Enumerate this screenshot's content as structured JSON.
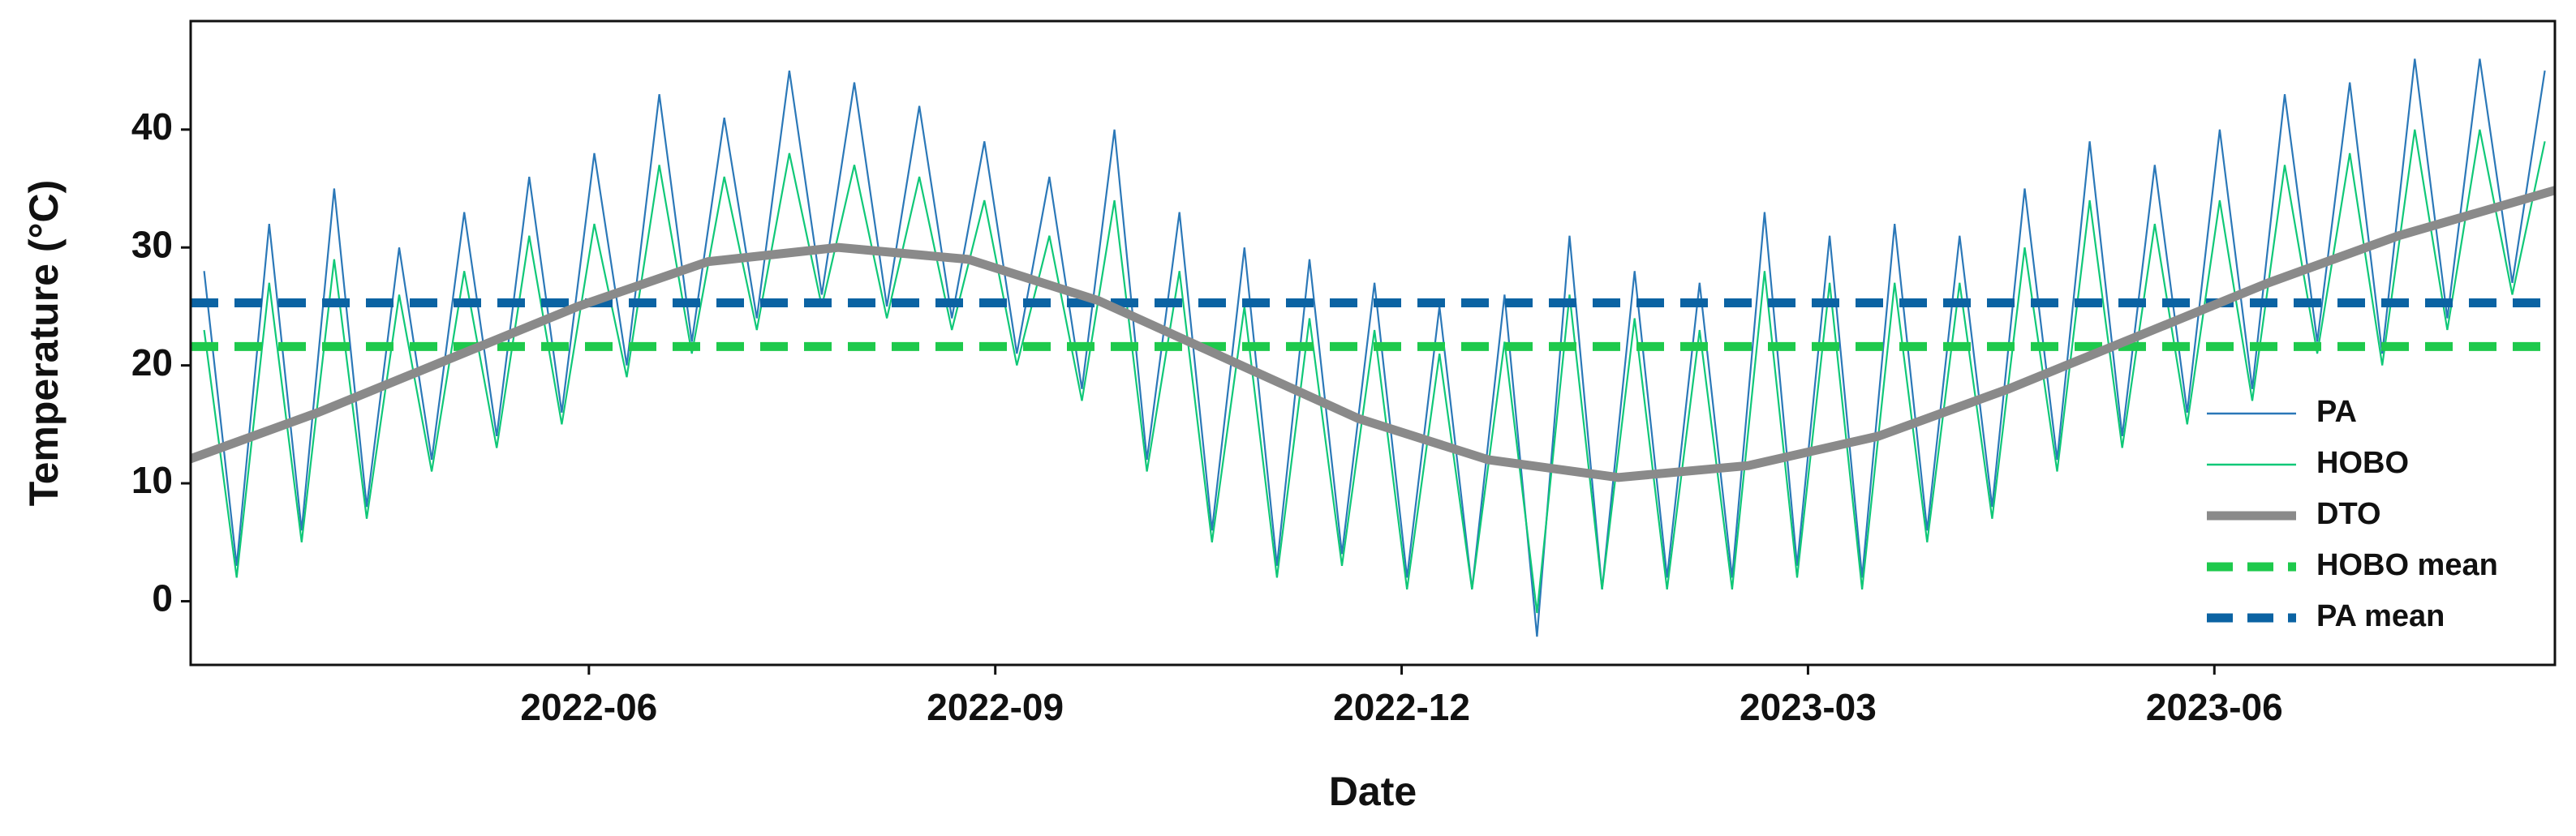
{
  "chart_data": {
    "type": "line",
    "x_label": "Date",
    "y_label": "Temperature (°C)",
    "xlim": [
      2022.1717,
      2023.6262
    ],
    "xticks": [
      {
        "value": 2022.4167,
        "label": "2022-06"
      },
      {
        "value": 2022.6667,
        "label": "2022-09"
      },
      {
        "value": 2022.9167,
        "label": "2022-12"
      },
      {
        "value": 2023.1667,
        "label": "2023-03"
      },
      {
        "value": 2023.4167,
        "label": "2023-06"
      }
    ],
    "ylim": [
      -5.4,
      49.2
    ],
    "yticks": [
      0,
      10,
      20,
      30,
      40
    ],
    "legend": "right",
    "x": [
      2022.18,
      2022.2,
      2022.22,
      2022.24,
      2022.26,
      2022.28,
      2022.3,
      2022.32,
      2022.34,
      2022.36,
      2022.38,
      2022.4,
      2022.42,
      2022.44,
      2022.46,
      2022.48,
      2022.5,
      2022.52,
      2022.54,
      2022.56,
      2022.58,
      2022.6,
      2022.62,
      2022.64,
      2022.66,
      2022.68,
      2022.7,
      2022.72,
      2022.74,
      2022.76,
      2022.78,
      2022.8,
      2022.82,
      2022.84,
      2022.86,
      2022.88,
      2022.9,
      2022.92,
      2022.94,
      2022.96,
      2022.98,
      2023.0,
      2023.02,
      2023.04,
      2023.06,
      2023.08,
      2023.1,
      2023.12,
      2023.14,
      2023.16,
      2023.18,
      2023.2,
      2023.22,
      2023.24,
      2023.26,
      2023.28,
      2023.3,
      2023.32,
      2023.34,
      2023.36,
      2023.38,
      2023.4,
      2023.42,
      2023.44,
      2023.46,
      2023.48,
      2023.5,
      2023.52,
      2023.54,
      2023.56,
      2023.58,
      2023.6,
      2023.62
    ],
    "series": [
      {
        "name": "PA",
        "color": "#2b78b8",
        "values": [
          28,
          3,
          32,
          6,
          35,
          8,
          30,
          12,
          33,
          14,
          36,
          16,
          38,
          20,
          43,
          22,
          41,
          24,
          45,
          26,
          44,
          25,
          42,
          24,
          39,
          21,
          36,
          18,
          40,
          12,
          33,
          6,
          30,
          3,
          29,
          4,
          27,
          2,
          25,
          1,
          26,
          -3,
          31,
          1,
          28,
          2,
          27,
          2,
          33,
          3,
          31,
          2,
          32,
          6,
          31,
          8,
          35,
          12,
          39,
          14,
          37,
          16,
          40,
          18,
          43,
          22,
          44,
          21,
          46,
          24,
          46,
          27,
          45
        ]
      },
      {
        "name": "HOBO",
        "color": "#10c878",
        "values": [
          23,
          2,
          27,
          5,
          29,
          7,
          26,
          11,
          28,
          13,
          31,
          15,
          32,
          19,
          37,
          21,
          36,
          23,
          38,
          25,
          37,
          24,
          36,
          23,
          34,
          20,
          31,
          17,
          34,
          11,
          28,
          5,
          25,
          2,
          24,
          3,
          23,
          1,
          21,
          1,
          22,
          -1,
          26,
          1,
          24,
          1,
          23,
          1,
          28,
          2,
          27,
          1,
          27,
          5,
          27,
          7,
          30,
          11,
          34,
          13,
          32,
          15,
          34,
          17,
          37,
          21,
          38,
          20,
          40,
          23,
          40,
          26,
          39
        ]
      },
      {
        "name": "DTO",
        "color": "#8a8a8a",
        "x": [
          2022.17,
          2022.25,
          2022.33,
          2022.41,
          2022.49,
          2022.57,
          2022.65,
          2022.73,
          2022.81,
          2022.89,
          2022.97,
          2023.05,
          2023.13,
          2023.21,
          2023.29,
          2023.37,
          2023.45,
          2023.53,
          2023.63
        ],
        "values": [
          12,
          16,
          20.5,
          25,
          28.8,
          30,
          29,
          25.5,
          20.5,
          15.5,
          12,
          10.5,
          11.5,
          14,
          18,
          22.5,
          27,
          31,
          35
        ]
      },
      {
        "name": "HOBO mean",
        "color": "#1ec94c",
        "value": 21.6
      },
      {
        "name": "PA mean",
        "color": "#0b63a3",
        "value": 25.3
      }
    ]
  }
}
